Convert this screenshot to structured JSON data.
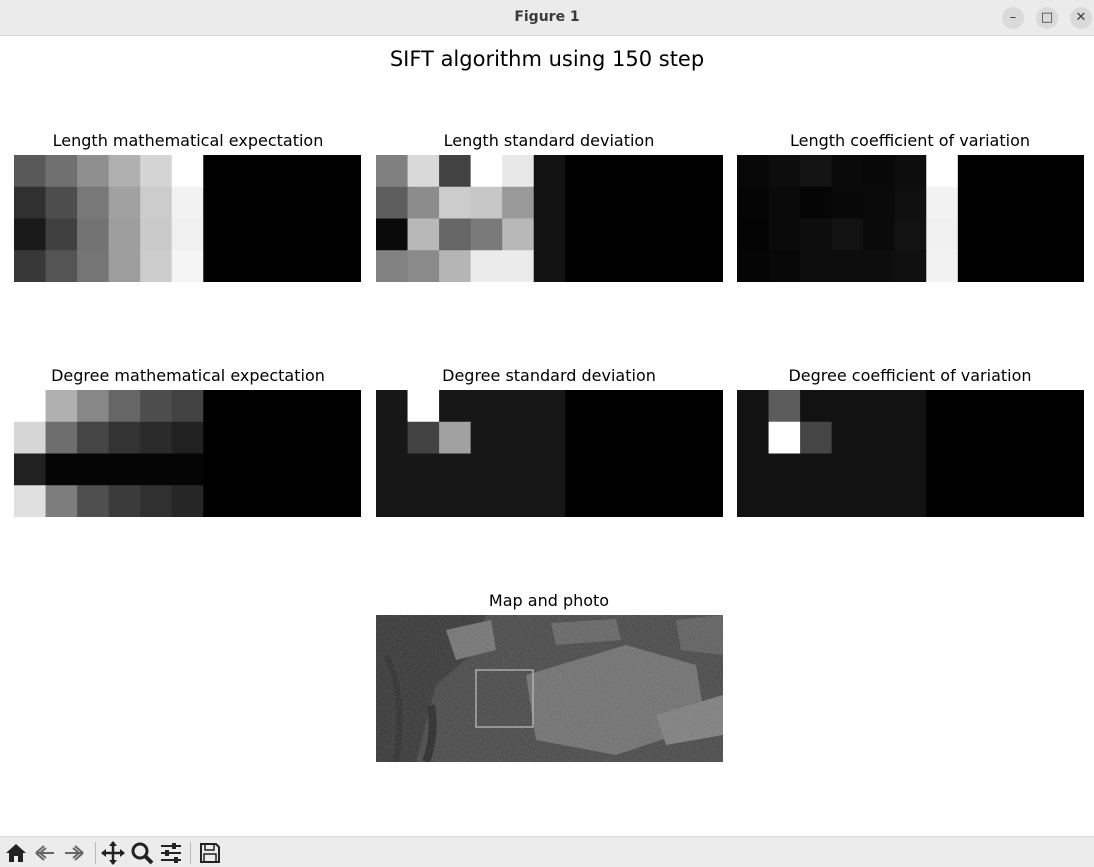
{
  "window": {
    "title": "Figure 1",
    "controls": {
      "minimize": "–",
      "maximize": "□",
      "close": "✕"
    }
  },
  "figure": {
    "suptitle": "SIFT algorithm using 150 step"
  },
  "chart_data": [
    {
      "type": "heatmap",
      "title": "Length mathematical expectation",
      "colormap": "gray",
      "values": [
        [
          0.35,
          0.44,
          0.56,
          0.69,
          0.83,
          1.0,
          0,
          0,
          0,
          0,
          0
        ],
        [
          0.19,
          0.3,
          0.47,
          0.63,
          0.8,
          0.95,
          0,
          0,
          0,
          0,
          0
        ],
        [
          0.1,
          0.25,
          0.45,
          0.62,
          0.79,
          0.94,
          0,
          0,
          0,
          0,
          0
        ],
        [
          0.22,
          0.33,
          0.46,
          0.62,
          0.8,
          0.96,
          0,
          0,
          0,
          0,
          0
        ]
      ]
    },
    {
      "type": "heatmap",
      "title": "Length standard deviation",
      "colormap": "gray",
      "values": [
        [
          0.5,
          0.85,
          0.26,
          1.0,
          0.91,
          0.07,
          0,
          0,
          0,
          0,
          0
        ],
        [
          0.37,
          0.55,
          0.8,
          0.78,
          0.6,
          0.07,
          0,
          0,
          0,
          0,
          0
        ],
        [
          0.04,
          0.72,
          0.4,
          0.48,
          0.72,
          0.07,
          0,
          0,
          0,
          0,
          0
        ],
        [
          0.51,
          0.54,
          0.71,
          0.92,
          0.92,
          0.07,
          0,
          0,
          0,
          0,
          0
        ]
      ]
    },
    {
      "type": "heatmap",
      "title": "Length coefficient of variation",
      "colormap": "gray",
      "values": [
        [
          0.03,
          0.05,
          0.08,
          0.04,
          0.03,
          0.05,
          1.0,
          0,
          0,
          0,
          0
        ],
        [
          0.02,
          0.04,
          0.02,
          0.03,
          0.04,
          0.06,
          0.95,
          0,
          0,
          0,
          0
        ],
        [
          0.01,
          0.04,
          0.05,
          0.07,
          0.04,
          0.07,
          0.94,
          0,
          0,
          0,
          0
        ],
        [
          0.02,
          0.03,
          0.05,
          0.05,
          0.05,
          0.06,
          0.95,
          0,
          0,
          0,
          0
        ]
      ]
    },
    {
      "type": "heatmap",
      "title": "Degree mathematical expectation",
      "colormap": "gray",
      "values": [
        [
          1.0,
          0.69,
          0.53,
          0.4,
          0.3,
          0.26,
          0,
          0,
          0,
          0,
          0
        ],
        [
          0.84,
          0.43,
          0.27,
          0.2,
          0.17,
          0.13,
          0,
          0,
          0,
          0,
          0
        ],
        [
          0.13,
          0.02,
          0.02,
          0.02,
          0.02,
          0.02,
          0,
          0,
          0,
          0,
          0
        ],
        [
          0.88,
          0.49,
          0.31,
          0.23,
          0.19,
          0.15,
          0,
          0,
          0,
          0,
          0
        ]
      ]
    },
    {
      "type": "heatmap",
      "title": "Degree standard deviation",
      "colormap": "gray",
      "values": [
        [
          0.09,
          1.0,
          0.09,
          0.09,
          0.09,
          0.09,
          0,
          0,
          0,
          0,
          0
        ],
        [
          0.09,
          0.26,
          0.63,
          0.09,
          0.09,
          0.09,
          0,
          0,
          0,
          0,
          0
        ],
        [
          0.09,
          0.09,
          0.09,
          0.09,
          0.09,
          0.09,
          0,
          0,
          0,
          0,
          0
        ],
        [
          0.09,
          0.09,
          0.09,
          0.09,
          0.09,
          0.09,
          0,
          0,
          0,
          0,
          0
        ]
      ]
    },
    {
      "type": "heatmap",
      "title": "Degree coefficient of variation",
      "colormap": "gray",
      "values": [
        [
          0.07,
          0.36,
          0.07,
          0.07,
          0.07,
          0.07,
          0,
          0,
          0,
          0,
          0
        ],
        [
          0.07,
          1.0,
          0.27,
          0.07,
          0.07,
          0.07,
          0,
          0,
          0,
          0,
          0
        ],
        [
          0.07,
          0.07,
          0.07,
          0.07,
          0.07,
          0.07,
          0,
          0,
          0,
          0,
          0
        ],
        [
          0.07,
          0.07,
          0.07,
          0.07,
          0.07,
          0.07,
          0,
          0,
          0,
          0,
          0
        ]
      ]
    },
    {
      "type": "image",
      "title": "Map and photo",
      "content": "grayscale satellite map",
      "highlight_box": "gray rectangle marking current photo window"
    }
  ],
  "toolbar": {
    "buttons": [
      "home-icon",
      "back-icon",
      "forward-icon",
      "pan-icon",
      "zoom-icon",
      "configure-subplots-icon",
      "save-icon"
    ]
  }
}
